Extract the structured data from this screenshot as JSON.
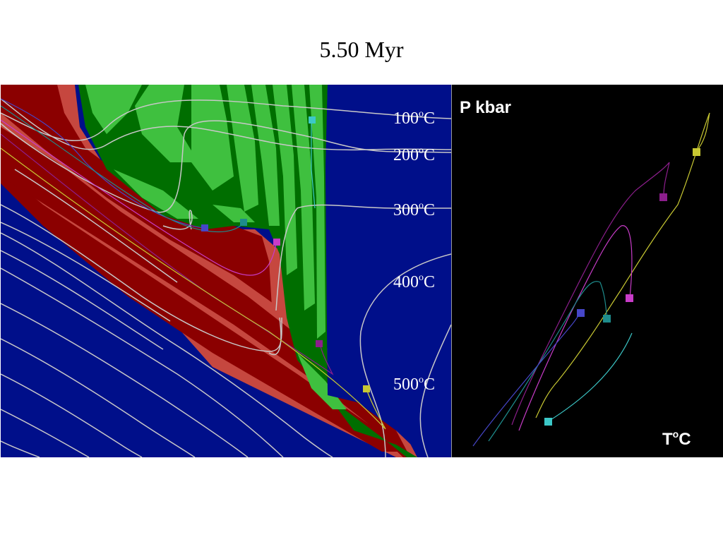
{
  "title": "5.50 Myr",
  "isotherms": [
    {
      "value": "100",
      "sup": "o",
      "unit": "C"
    },
    {
      "value": "200",
      "sup": "o",
      "unit": "C"
    },
    {
      "value": "300",
      "sup": "o",
      "unit": "C"
    },
    {
      "value": "400",
      "sup": "o",
      "unit": "C"
    },
    {
      "value": "500",
      "sup": "o",
      "unit": "C"
    }
  ],
  "pt_panel": {
    "y_label": "P kbar",
    "x_label_main": "T",
    "x_label_sup": "o",
    "x_label_unit": "C"
  },
  "colors": {
    "background_blue": "#000f8a",
    "dark_red": "#8b0000",
    "light_red": "#c6473f",
    "dark_green": "#006e00",
    "light_green": "#3fc03f",
    "isotherm_line": "#c8c8c8",
    "marker_yellow": "#c8c832",
    "marker_purple": "#8c1e8c",
    "marker_magenta": "#c83cc8",
    "marker_blue": "#4646c8",
    "marker_teal": "#1e8c8c",
    "marker_cyan": "#3cc8c8"
  }
}
